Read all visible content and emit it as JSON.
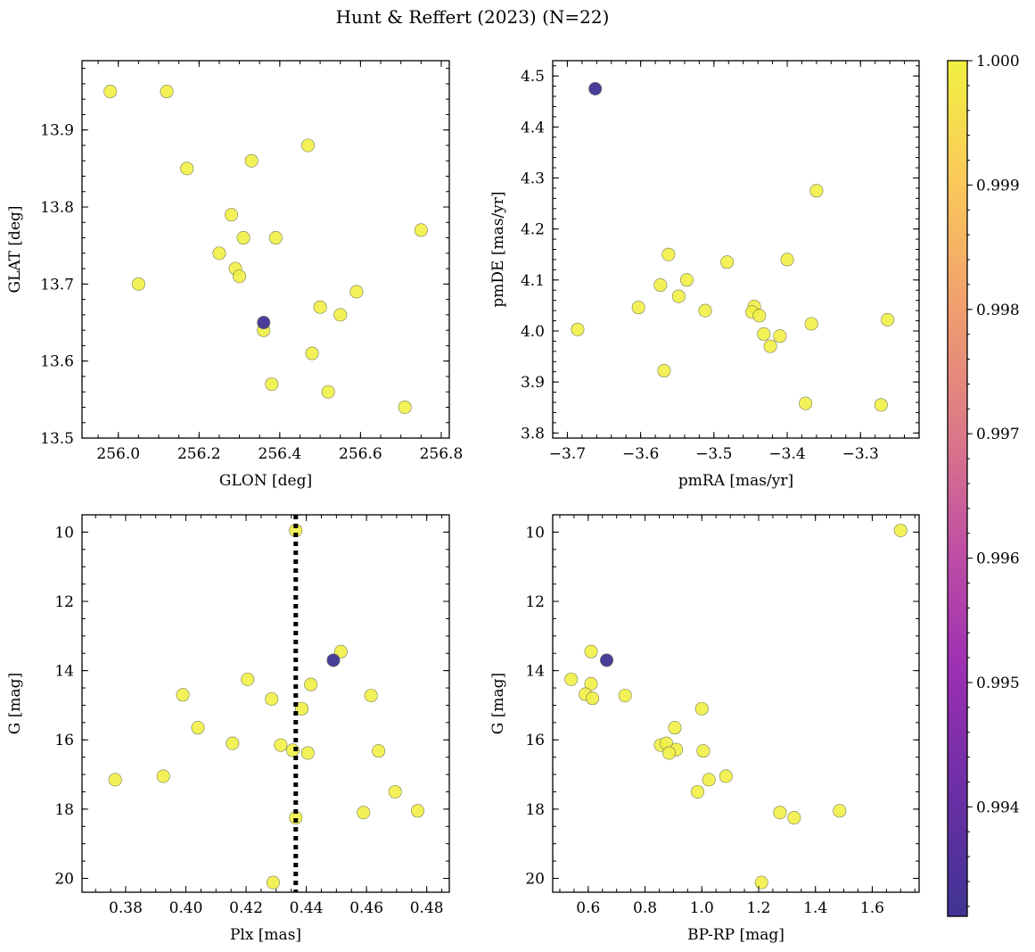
{
  "title": "Hunt & Reffert (2023) (N=22)",
  "colors": {
    "member": "#f0f041",
    "outlier": "#3f3493",
    "colormap": [
      "#3f3493",
      "#6a2fa5",
      "#9b2fb2",
      "#c04fa4",
      "#dd7a86",
      "#f09f6d",
      "#fbc85a",
      "#f0f041"
    ]
  },
  "chart_data": [
    {
      "type": "scatter",
      "name": "glon-glat",
      "xlabel": "GLON [deg]",
      "ylabel": "GLAT [deg]",
      "xlim": [
        255.91,
        256.82
      ],
      "ylim": [
        13.5,
        13.99
      ],
      "inverty": false,
      "xticks": [
        256.0,
        256.2,
        256.4,
        256.6,
        256.8
      ],
      "xtick_labels": [
        "256.0",
        "256.2",
        "256.4",
        "256.6",
        "256.8"
      ],
      "yticks": [
        13.5,
        13.6,
        13.7,
        13.8,
        13.9
      ],
      "ytick_labels": [
        "13.5",
        "13.6",
        "13.7",
        "13.8",
        "13.9"
      ],
      "xminor": 0.05,
      "yminor": 0.02,
      "points": [
        {
          "x": 255.98,
          "y": 13.95
        },
        {
          "x": 256.12,
          "y": 13.95
        },
        {
          "x": 256.47,
          "y": 13.88
        },
        {
          "x": 256.33,
          "y": 13.86
        },
        {
          "x": 256.17,
          "y": 13.85
        },
        {
          "x": 256.28,
          "y": 13.79
        },
        {
          "x": 256.75,
          "y": 13.77
        },
        {
          "x": 256.31,
          "y": 13.76
        },
        {
          "x": 256.39,
          "y": 13.76
        },
        {
          "x": 256.25,
          "y": 13.74
        },
        {
          "x": 256.29,
          "y": 13.72
        },
        {
          "x": 256.3,
          "y": 13.71
        },
        {
          "x": 256.05,
          "y": 13.7
        },
        {
          "x": 256.59,
          "y": 13.69
        },
        {
          "x": 256.5,
          "y": 13.67
        },
        {
          "x": 256.55,
          "y": 13.66
        },
        {
          "x": 256.36,
          "y": 13.64
        },
        {
          "x": 256.48,
          "y": 13.61
        },
        {
          "x": 256.38,
          "y": 13.57
        },
        {
          "x": 256.52,
          "y": 13.56
        },
        {
          "x": 256.71,
          "y": 13.54
        },
        {
          "x": 256.36,
          "y": 13.65,
          "outlier": true
        }
      ]
    },
    {
      "type": "scatter",
      "name": "pmra-pmde",
      "xlabel": "pmRA [mas/yr]",
      "ylabel": "pmDE [mas/yr]",
      "xlim": [
        -3.72,
        -3.22
      ],
      "ylim": [
        3.79,
        4.53
      ],
      "inverty": false,
      "xticks": [
        -3.7,
        -3.6,
        -3.5,
        -3.4,
        -3.3
      ],
      "xtick_labels": [
        "−3.7",
        "−3.6",
        "−3.5",
        "−3.4",
        "−3.3"
      ],
      "yticks": [
        3.8,
        3.9,
        4.0,
        4.1,
        4.2,
        4.3,
        4.4,
        4.5
      ],
      "ytick_labels": [
        "3.8",
        "3.9",
        "4.0",
        "4.1",
        "4.2",
        "4.3",
        "4.4",
        "4.5"
      ],
      "xminor": 0.02,
      "yminor": 0.02,
      "points": [
        {
          "x": -3.36,
          "y": 4.275
        },
        {
          "x": -3.562,
          "y": 4.15
        },
        {
          "x": -3.482,
          "y": 4.135
        },
        {
          "x": -3.4,
          "y": 4.14
        },
        {
          "x": -3.537,
          "y": 4.1
        },
        {
          "x": -3.573,
          "y": 4.09
        },
        {
          "x": -3.548,
          "y": 4.068
        },
        {
          "x": -3.603,
          "y": 4.046
        },
        {
          "x": -3.512,
          "y": 4.04
        },
        {
          "x": -3.445,
          "y": 4.048
        },
        {
          "x": -3.448,
          "y": 4.037
        },
        {
          "x": -3.438,
          "y": 4.03
        },
        {
          "x": -3.263,
          "y": 4.022
        },
        {
          "x": -3.367,
          "y": 4.014
        },
        {
          "x": -3.686,
          "y": 4.003
        },
        {
          "x": -3.432,
          "y": 3.994
        },
        {
          "x": -3.41,
          "y": 3.99
        },
        {
          "x": -3.423,
          "y": 3.97
        },
        {
          "x": -3.568,
          "y": 3.922
        },
        {
          "x": -3.375,
          "y": 3.858
        },
        {
          "x": -3.272,
          "y": 3.855
        },
        {
          "x": -3.662,
          "y": 4.475,
          "outlier": true
        }
      ]
    },
    {
      "type": "scatter",
      "name": "plx-g",
      "xlabel": "Plx [mas]",
      "ylabel": "G [mag]",
      "xlim": [
        0.3655,
        0.4875
      ],
      "ylim": [
        9.5,
        20.4
      ],
      "inverty": true,
      "xticks": [
        0.38,
        0.4,
        0.42,
        0.44,
        0.46,
        0.48
      ],
      "xtick_labels": [
        "0.38",
        "0.40",
        "0.42",
        "0.44",
        "0.46",
        "0.48"
      ],
      "yticks": [
        10,
        12,
        14,
        16,
        18,
        20
      ],
      "ytick_labels": [
        "10",
        "12",
        "14",
        "16",
        "18",
        "20"
      ],
      "xminor": 0.005,
      "yminor": 0.5,
      "vline": 0.4365,
      "points": [
        {
          "x": 0.4365,
          "y": 9.95
        },
        {
          "x": 0.4515,
          "y": 13.45
        },
        {
          "x": 0.4205,
          "y": 14.25
        },
        {
          "x": 0.4415,
          "y": 14.4
        },
        {
          "x": 0.399,
          "y": 14.7
        },
        {
          "x": 0.4615,
          "y": 14.72
        },
        {
          "x": 0.4285,
          "y": 14.82
        },
        {
          "x": 0.4385,
          "y": 15.1
        },
        {
          "x": 0.404,
          "y": 15.65
        },
        {
          "x": 0.4155,
          "y": 16.1
        },
        {
          "x": 0.4315,
          "y": 16.15
        },
        {
          "x": 0.4355,
          "y": 16.3
        },
        {
          "x": 0.464,
          "y": 16.32
        },
        {
          "x": 0.4405,
          "y": 16.38
        },
        {
          "x": 0.3925,
          "y": 17.05
        },
        {
          "x": 0.3765,
          "y": 17.15
        },
        {
          "x": 0.4695,
          "y": 17.5
        },
        {
          "x": 0.477,
          "y": 18.05
        },
        {
          "x": 0.459,
          "y": 18.1
        },
        {
          "x": 0.4365,
          "y": 18.25
        },
        {
          "x": 0.429,
          "y": 20.12
        },
        {
          "x": 0.449,
          "y": 13.7,
          "outlier": true
        }
      ]
    },
    {
      "type": "scatter",
      "name": "bprp-g",
      "xlabel": "BP-RP [mag]",
      "ylabel": "G [mag]",
      "xlim": [
        0.475,
        1.765
      ],
      "ylim": [
        9.5,
        20.4
      ],
      "inverty": true,
      "xticks": [
        0.6,
        0.8,
        1.0,
        1.2,
        1.4,
        1.6
      ],
      "xtick_labels": [
        "0.6",
        "0.8",
        "1.0",
        "1.2",
        "1.4",
        "1.6"
      ],
      "yticks": [
        10,
        12,
        14,
        16,
        18,
        20
      ],
      "ytick_labels": [
        "10",
        "12",
        "14",
        "16",
        "18",
        "20"
      ],
      "xminor": 0.05,
      "yminor": 0.5,
      "points": [
        {
          "x": 1.7,
          "y": 9.95
        },
        {
          "x": 0.61,
          "y": 13.45
        },
        {
          "x": 0.54,
          "y": 14.25
        },
        {
          "x": 0.61,
          "y": 14.38
        },
        {
          "x": 0.59,
          "y": 14.68
        },
        {
          "x": 0.615,
          "y": 14.8
        },
        {
          "x": 0.73,
          "y": 14.72
        },
        {
          "x": 1.0,
          "y": 15.1
        },
        {
          "x": 0.905,
          "y": 15.65
        },
        {
          "x": 0.855,
          "y": 16.15
        },
        {
          "x": 0.875,
          "y": 16.1
        },
        {
          "x": 0.91,
          "y": 16.28
        },
        {
          "x": 0.885,
          "y": 16.38
        },
        {
          "x": 1.005,
          "y": 16.32
        },
        {
          "x": 1.085,
          "y": 17.05
        },
        {
          "x": 1.025,
          "y": 17.15
        },
        {
          "x": 0.985,
          "y": 17.5
        },
        {
          "x": 1.485,
          "y": 18.05
        },
        {
          "x": 1.275,
          "y": 18.1
        },
        {
          "x": 1.325,
          "y": 18.25
        },
        {
          "x": 1.21,
          "y": 20.12
        },
        {
          "x": 0.665,
          "y": 13.7,
          "outlier": true
        }
      ]
    }
  ],
  "colorbar": {
    "range": [
      0.99312,
      1.0
    ],
    "ticks": [
      0.994,
      0.995,
      0.996,
      0.997,
      0.998,
      0.999,
      1.0
    ],
    "tick_labels": [
      "0.994",
      "0.995",
      "0.996",
      "0.997",
      "0.998",
      "0.999",
      "1.000"
    ],
    "minor": 0.0002
  }
}
